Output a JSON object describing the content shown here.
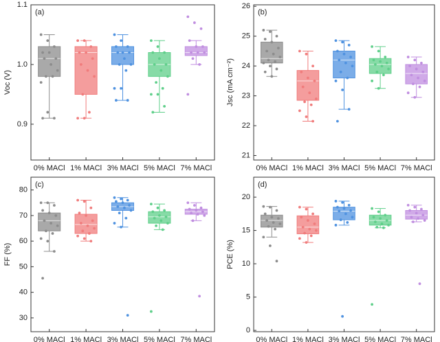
{
  "chart_data": [
    {
      "type": "box",
      "label": "(a)",
      "ylabel": "Voc (V)",
      "categories": [
        "0% MACl",
        "1% MACl",
        "3% MACl",
        "5% MACl",
        "7% MACl"
      ],
      "ylim": [
        0.84,
        1.1
      ],
      "yticks": [
        0.9,
        {
          "value": 1,
          "label": "1.0"
        },
        1.1
      ],
      "boxes": [
        {
          "color": "#8c8c8c",
          "min": 0.91,
          "q1": 0.98,
          "median": 1.01,
          "q3": 1.03,
          "max": 1.05,
          "points": [
            1.05,
            1.04,
            1.03,
            1.02,
            1.02,
            1.01,
            1.01,
            1.0,
            0.99,
            0.98,
            0.98,
            0.97,
            0.92,
            0.91,
            0.91
          ]
        },
        {
          "color": "#f07c7c",
          "min": 0.91,
          "q1": 0.95,
          "median": 1.02,
          "q3": 1.03,
          "max": 1.04,
          "points": [
            1.04,
            1.04,
            1.03,
            1.02,
            1.02,
            1.01,
            1.0,
            0.99,
            0.98,
            0.95,
            0.92,
            0.91,
            0.91
          ]
        },
        {
          "color": "#4f92e0",
          "min": 0.94,
          "q1": 1.0,
          "median": 1.02,
          "q3": 1.03,
          "max": 1.05,
          "points": [
            1.05,
            1.04,
            1.03,
            1.03,
            1.02,
            1.02,
            1.02,
            1.01,
            1.0,
            1.0,
            0.99,
            0.96,
            0.96,
            0.94,
            0.94
          ]
        },
        {
          "color": "#5fcf8a",
          "min": 0.92,
          "q1": 0.98,
          "median": 1.0,
          "q3": 1.02,
          "max": 1.04,
          "points": [
            1.04,
            1.03,
            1.02,
            1.02,
            1.01,
            1.0,
            1.0,
            0.99,
            0.98,
            0.97,
            0.96,
            0.95,
            0.95,
            0.93,
            0.92
          ]
        },
        {
          "color": "#c08ee0",
          "min": 1.0,
          "q1": 1.015,
          "median": 1.02,
          "q3": 1.03,
          "max": 1.04,
          "points": [
            1.08,
            1.07,
            1.06,
            1.04,
            1.03,
            1.03,
            1.02,
            1.02,
            1.02,
            1.01,
            1.0,
            0.95
          ]
        }
      ]
    },
    {
      "type": "box",
      "label": "(b)",
      "ylabel": "Jsc (mA cm⁻²)",
      "categories": [
        "0% MACl",
        "1% MACl",
        "3% MACl",
        "5% MACl",
        "7% MACl"
      ],
      "ylim": [
        20.85,
        26.05
      ],
      "yticks": [
        21,
        22,
        23,
        24,
        25,
        26
      ],
      "boxes": [
        {
          "color": "#8c8c8c",
          "min": 23.65,
          "q1": 24.1,
          "median": 24.25,
          "q3": 24.8,
          "max": 25.2,
          "points": [
            25.2,
            25.15,
            25.0,
            24.9,
            24.8,
            24.6,
            24.5,
            24.4,
            24.3,
            24.2,
            24.15,
            24.1,
            24.0,
            23.9,
            23.8,
            23.65
          ]
        },
        {
          "color": "#f07c7c",
          "min": 22.15,
          "q1": 22.85,
          "median": 23.5,
          "q3": 23.85,
          "max": 24.5,
          "points": [
            24.5,
            24.4,
            24.0,
            23.8,
            23.6,
            23.5,
            23.3,
            23.1,
            22.9,
            22.8,
            22.7,
            22.5,
            22.3,
            22.15
          ]
        },
        {
          "color": "#4f92e0",
          "min": 22.55,
          "q1": 23.6,
          "median": 24.2,
          "q3": 24.5,
          "max": 24.85,
          "points": [
            24.85,
            24.8,
            24.7,
            24.5,
            24.4,
            24.3,
            24.2,
            24.1,
            24.0,
            23.8,
            23.6,
            23.5,
            23.2,
            22.55,
            22.15
          ]
        },
        {
          "color": "#5fcf8a",
          "min": 23.25,
          "q1": 23.75,
          "median": 24.05,
          "q3": 24.25,
          "max": 24.65,
          "points": [
            24.65,
            24.5,
            24.3,
            24.2,
            24.15,
            24.1,
            24.05,
            24.0,
            23.9,
            23.8,
            23.7,
            23.5,
            23.25
          ]
        },
        {
          "color": "#c08ee0",
          "min": 22.95,
          "q1": 23.4,
          "median": 23.75,
          "q3": 24.05,
          "max": 24.3,
          "points": [
            24.3,
            24.2,
            24.1,
            24.0,
            23.9,
            23.8,
            23.7,
            23.6,
            23.5,
            23.4,
            23.3,
            23.1,
            22.95
          ]
        }
      ]
    },
    {
      "type": "box",
      "label": "(c)",
      "ylabel": "FF (%)",
      "categories": [
        "0% MACl",
        "1% MACl",
        "3% MACl",
        "5% MACl",
        "7% MACl"
      ],
      "ylim": [
        24.6,
        85
      ],
      "yticks": [
        30,
        40,
        50,
        60,
        70,
        80
      ],
      "boxes": [
        {
          "color": "#8c8c8c",
          "min": 56,
          "q1": 64,
          "median": 68,
          "q3": 71,
          "max": 75,
          "points": [
            75,
            75,
            74,
            72,
            71,
            70,
            68,
            67,
            66,
            64,
            63,
            61,
            60,
            56,
            45.5
          ]
        },
        {
          "color": "#f07c7c",
          "min": 60,
          "q1": 63,
          "median": 66.5,
          "q3": 70.5,
          "max": 76,
          "points": [
            76,
            75.5,
            73,
            71,
            70,
            68,
            67,
            66,
            65,
            64,
            63,
            62,
            61,
            60
          ]
        },
        {
          "color": "#4f92e0",
          "min": 65.5,
          "q1": 72,
          "median": 73.5,
          "q3": 75,
          "max": 77,
          "points": [
            77,
            76.5,
            76,
            75.5,
            75,
            74,
            73.5,
            73,
            72,
            71,
            69,
            67,
            65.5,
            31
          ]
        },
        {
          "color": "#5fcf8a",
          "min": 64.5,
          "q1": 67,
          "median": 69.5,
          "q3": 71.5,
          "max": 74.5,
          "points": [
            74.5,
            73,
            72,
            71.5,
            70,
            69.5,
            69,
            68,
            67,
            66,
            64.5,
            32.5
          ]
        },
        {
          "color": "#c08ee0",
          "min": 68,
          "q1": 70.5,
          "median": 71.5,
          "q3": 72.5,
          "max": 75,
          "points": [
            75,
            74,
            73,
            72.5,
            72,
            71.5,
            71,
            70.5,
            70,
            68,
            38.5
          ]
        }
      ]
    },
    {
      "type": "box",
      "label": "(d)",
      "ylabel": "PCE (%)",
      "categories": [
        "0% MACl",
        "1% MACl",
        "3% MACl",
        "5% MACl",
        "7% MACl"
      ],
      "ylim": [
        -0.2,
        23
      ],
      "yticks": [
        0,
        5,
        10,
        15,
        20
      ],
      "boxes": [
        {
          "color": "#8c8c8c",
          "min": 14.0,
          "q1": 15.5,
          "median": 16.5,
          "q3": 17.3,
          "max": 18.6,
          "points": [
            18.6,
            18.5,
            18.0,
            17.5,
            17.0,
            16.8,
            16.5,
            16.2,
            16.0,
            15.6,
            15.2,
            14.0,
            12.7,
            10.4
          ]
        },
        {
          "color": "#f07c7c",
          "min": 13.2,
          "q1": 14.5,
          "median": 15.5,
          "q3": 17.2,
          "max": 18.5,
          "points": [
            18.5,
            18.2,
            17.5,
            17.0,
            16.5,
            16.0,
            15.5,
            15.2,
            15.0,
            14.6,
            14.2,
            13.8,
            13.2
          ]
        },
        {
          "color": "#4f92e0",
          "min": 15.8,
          "q1": 16.6,
          "median": 17.9,
          "q3": 18.5,
          "max": 19.4,
          "points": [
            19.4,
            19.2,
            18.8,
            18.5,
            18.3,
            18.0,
            17.9,
            17.5,
            17.0,
            16.6,
            16.2,
            15.8,
            2.1
          ]
        },
        {
          "color": "#5fcf8a",
          "min": 15.4,
          "q1": 15.8,
          "median": 16.5,
          "q3": 17.3,
          "max": 18.3,
          "points": [
            18.3,
            17.8,
            17.3,
            17.0,
            16.8,
            16.5,
            16.3,
            16.0,
            15.8,
            15.5,
            15.4,
            3.9
          ]
        },
        {
          "color": "#c08ee0",
          "min": 16.3,
          "q1": 16.7,
          "median": 17.3,
          "q3": 18.0,
          "max": 18.8,
          "points": [
            18.8,
            18.5,
            18.2,
            18.0,
            17.6,
            17.3,
            17.0,
            16.8,
            16.5,
            16.3,
            7.0
          ]
        }
      ]
    }
  ]
}
